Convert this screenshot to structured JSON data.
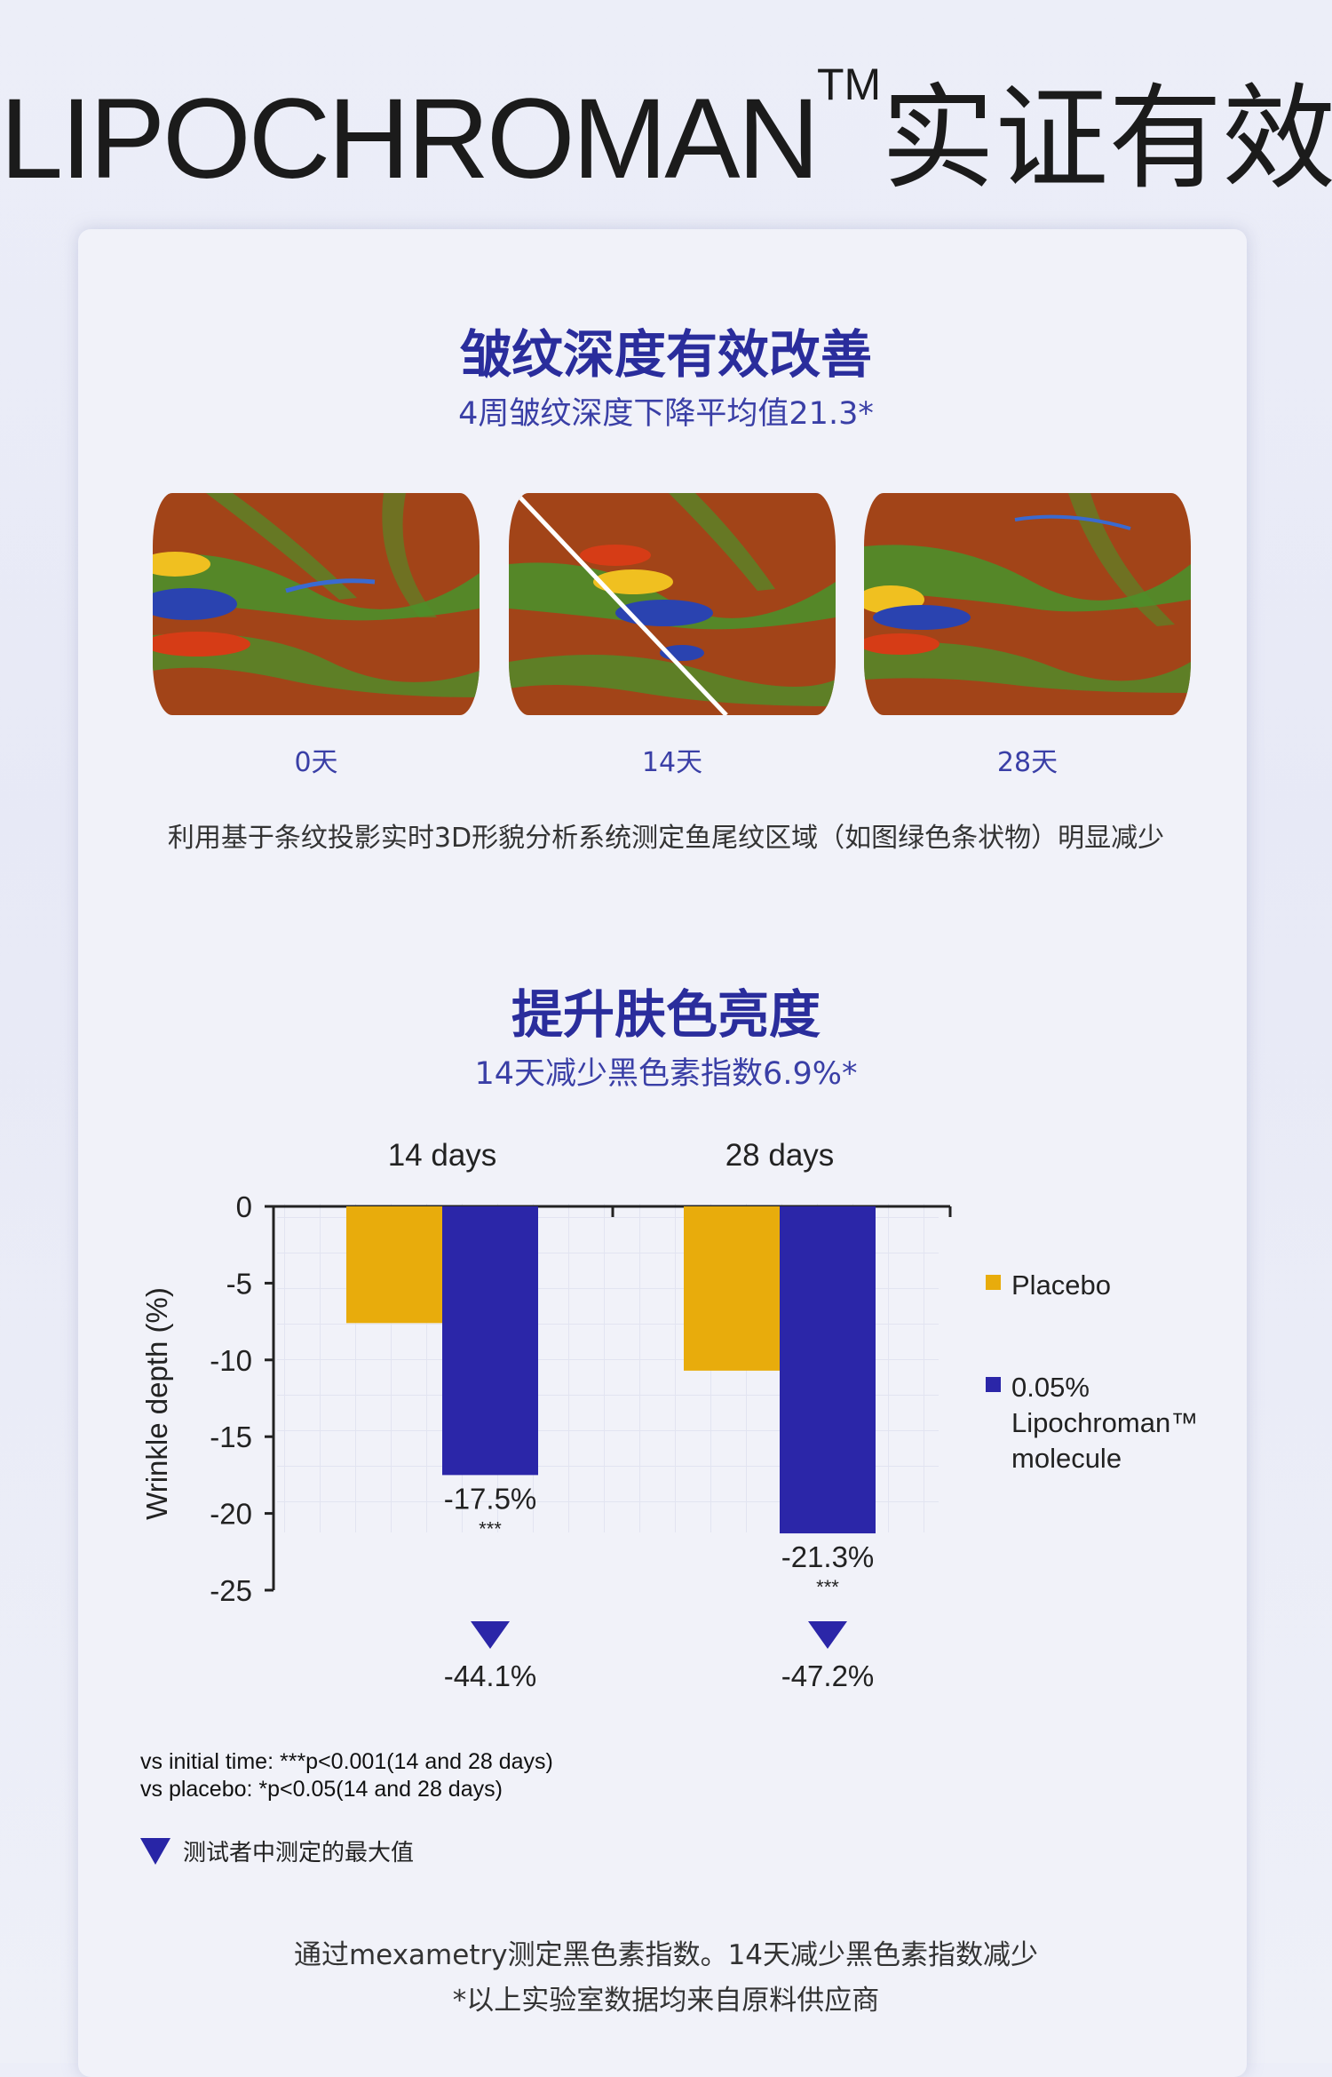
{
  "page_title": {
    "brand": "LIPOCHROMAN",
    "tm": "TM",
    "suffix": "实证有效"
  },
  "section1": {
    "heading": "皱纹深度有效改善",
    "subheading": "4周皱纹深度下降平均值21.3*",
    "images": [
      {
        "label": "0天",
        "caption_icon": "skin-topography-heatmap"
      },
      {
        "label": "14天",
        "caption_icon": "skin-topography-heatmap-split"
      },
      {
        "label": "28天",
        "caption_icon": "skin-topography-heatmap"
      }
    ],
    "description": "利用基于条纹投影实时3D形貌分析系统测定鱼尾纹区域（如图绿色条状物）明显减少"
  },
  "section2": {
    "heading": "提升肤色亮度",
    "subheading": "14天减少黑色素指数6.9%*"
  },
  "chart_data": {
    "type": "bar",
    "categories": [
      "14 days",
      "28 days"
    ],
    "series": [
      {
        "name": "Placebo",
        "color": "#e8ac0c",
        "values": [
          -7.6,
          -10.7
        ]
      },
      {
        "name": "0.05% Lipochroman™ molecule",
        "color": "#2b26a8",
        "values": [
          -17.5,
          -21.3
        ]
      }
    ],
    "data_labels": [
      "-17.5%",
      "-21.3%"
    ],
    "significance": [
      "***",
      "***"
    ],
    "max_markers": [
      "-44.1%",
      "-47.2%"
    ],
    "ylabel": "Wrinkle depth (%)",
    "ylim": [
      -25,
      0
    ],
    "yticks": [
      "0",
      "-5",
      "-10",
      "-15",
      "-20",
      "-25"
    ],
    "legend": {
      "placement": "right",
      "items": [
        {
          "lines": [
            "Placebo"
          ]
        },
        {
          "lines": [
            "0.05%",
            "Lipochroman™",
            "molecule"
          ]
        }
      ]
    },
    "grid": "faint"
  },
  "notes": [
    "vs initial time: ***p<0.001(14 and 28 days)",
    "vs placebo: *p<0.05(14 and 28 days)"
  ],
  "marker_note": "测试者中测定的最大值",
  "footer": {
    "line1": "通过mexametry测定黑色素指数。14天减少黑色素指数减少",
    "line2": "*以上实验室数据均来自原料供应商"
  }
}
